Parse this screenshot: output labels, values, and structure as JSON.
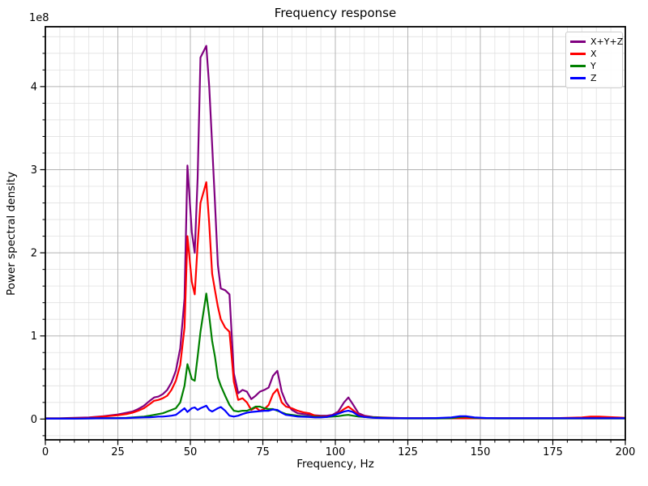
{
  "chart": {
    "title": "Frequency response",
    "xlabel": "Frequency, Hz",
    "ylabel": "Power spectral density",
    "offset_text": "1e8"
  },
  "chart_data": {
    "type": "line",
    "title": "Frequency response",
    "xlabel": "Frequency, Hz",
    "ylabel": "Power spectral density",
    "grid": "on",
    "legend_position": "upper right",
    "xlim": [
      0,
      200
    ],
    "ylim_1e8": [
      -0.25,
      4.72
    ],
    "x_ticks": [
      0,
      25,
      50,
      75,
      100,
      125,
      150,
      175,
      200
    ],
    "x_minor_step": 5,
    "y_ticks": [
      0,
      1,
      2,
      3,
      4
    ],
    "y_minor_step": 0.2,
    "y_offset_label": "1e8",
    "y_unit_multiplier": 100000000,
    "x": [
      0,
      5,
      10,
      15,
      20,
      25,
      28,
      30,
      32,
      34,
      36,
      37.5,
      39,
      40.5,
      42,
      43.5,
      45,
      46.5,
      48,
      49,
      50.5,
      51.5,
      52.5,
      53.5,
      55.5,
      56.5,
      57.5,
      58.5,
      59.5,
      60.5,
      62,
      63.5,
      65,
      66.5,
      68,
      69.5,
      71,
      72.5,
      74,
      75.5,
      77,
      78.5,
      80,
      81.5,
      83,
      85,
      87,
      89,
      91,
      93,
      95,
      97,
      99,
      101,
      103,
      104.5,
      106,
      108,
      110,
      113,
      116,
      120,
      125,
      130,
      135,
      140,
      143,
      145,
      148,
      152,
      156,
      160,
      165,
      170,
      175,
      180,
      185,
      188,
      191,
      194,
      197,
      200
    ],
    "series": [
      {
        "name": "X+Y+Z",
        "color": "#800080",
        "values": [
          0.01,
          0.01,
          0.015,
          0.02,
          0.035,
          0.055,
          0.075,
          0.09,
          0.12,
          0.16,
          0.22,
          0.26,
          0.27,
          0.3,
          0.35,
          0.44,
          0.58,
          0.85,
          1.45,
          3.05,
          2.25,
          2.0,
          2.9,
          4.35,
          4.49,
          4.0,
          3.3,
          2.6,
          1.85,
          1.57,
          1.55,
          1.5,
          0.55,
          0.31,
          0.35,
          0.33,
          0.24,
          0.28,
          0.33,
          0.35,
          0.38,
          0.52,
          0.58,
          0.33,
          0.2,
          0.11,
          0.07,
          0.06,
          0.05,
          0.045,
          0.04,
          0.04,
          0.05,
          0.09,
          0.2,
          0.26,
          0.18,
          0.07,
          0.04,
          0.025,
          0.02,
          0.015,
          0.01,
          0.01,
          0.01,
          0.015,
          0.02,
          0.02,
          0.015,
          0.01,
          0.01,
          0.01,
          0.01,
          0.01,
          0.01,
          0.01,
          0.01,
          0.015,
          0.02,
          0.02,
          0.015,
          0.01
        ]
      },
      {
        "name": "X",
        "color": "#ff0000",
        "values": [
          0.005,
          0.005,
          0.01,
          0.015,
          0.03,
          0.045,
          0.06,
          0.075,
          0.1,
          0.13,
          0.18,
          0.22,
          0.23,
          0.25,
          0.28,
          0.35,
          0.46,
          0.65,
          1.1,
          2.2,
          1.65,
          1.5,
          2.1,
          2.6,
          2.85,
          2.35,
          1.75,
          1.55,
          1.35,
          1.2,
          1.1,
          1.05,
          0.45,
          0.23,
          0.25,
          0.2,
          0.11,
          0.14,
          0.1,
          0.12,
          0.17,
          0.3,
          0.36,
          0.2,
          0.15,
          0.13,
          0.1,
          0.08,
          0.07,
          0.04,
          0.03,
          0.03,
          0.04,
          0.07,
          0.12,
          0.15,
          0.11,
          0.05,
          0.03,
          0.02,
          0.015,
          0.01,
          0.01,
          0.01,
          0.01,
          0.01,
          0.01,
          0.01,
          0.01,
          0.01,
          0.01,
          0.01,
          0.01,
          0.01,
          0.01,
          0.015,
          0.02,
          0.03,
          0.03,
          0.025,
          0.02,
          0.015
        ]
      },
      {
        "name": "Y",
        "color": "#008000",
        "values": [
          0.005,
          0.005,
          0.005,
          0.008,
          0.01,
          0.012,
          0.015,
          0.02,
          0.025,
          0.03,
          0.04,
          0.05,
          0.06,
          0.07,
          0.09,
          0.11,
          0.13,
          0.2,
          0.4,
          0.66,
          0.48,
          0.46,
          0.75,
          1.05,
          1.51,
          1.24,
          0.94,
          0.75,
          0.5,
          0.4,
          0.28,
          0.17,
          0.1,
          0.09,
          0.1,
          0.1,
          0.12,
          0.15,
          0.15,
          0.13,
          0.12,
          0.12,
          0.1,
          0.08,
          0.06,
          0.05,
          0.04,
          0.035,
          0.03,
          0.028,
          0.025,
          0.025,
          0.03,
          0.035,
          0.045,
          0.05,
          0.04,
          0.03,
          0.025,
          0.02,
          0.015,
          0.01,
          0.008,
          0.008,
          0.008,
          0.012,
          0.025,
          0.03,
          0.015,
          0.01,
          0.008,
          0.008,
          0.008,
          0.008,
          0.008,
          0.008,
          0.008,
          0.008,
          0.008,
          0.008,
          0.008,
          0.008
        ]
      },
      {
        "name": "Z",
        "color": "#0000ff",
        "values": [
          0.005,
          0.005,
          0.005,
          0.008,
          0.01,
          0.01,
          0.012,
          0.015,
          0.018,
          0.02,
          0.022,
          0.025,
          0.03,
          0.03,
          0.035,
          0.04,
          0.05,
          0.09,
          0.13,
          0.085,
          0.13,
          0.14,
          0.11,
          0.13,
          0.16,
          0.11,
          0.09,
          0.11,
          0.13,
          0.145,
          0.1,
          0.04,
          0.03,
          0.04,
          0.06,
          0.075,
          0.085,
          0.09,
          0.095,
          0.1,
          0.1,
          0.115,
          0.11,
          0.075,
          0.05,
          0.04,
          0.03,
          0.028,
          0.025,
          0.02,
          0.02,
          0.025,
          0.04,
          0.065,
          0.09,
          0.1,
          0.085,
          0.04,
          0.025,
          0.015,
          0.012,
          0.01,
          0.01,
          0.01,
          0.012,
          0.02,
          0.035,
          0.035,
          0.02,
          0.012,
          0.01,
          0.01,
          0.01,
          0.01,
          0.01,
          0.01,
          0.01,
          0.01,
          0.01,
          0.01,
          0.01,
          0.01
        ]
      }
    ],
    "style": {
      "background": "#ffffff",
      "spine_color": "#000000",
      "major_grid_color": "#b4b4b4",
      "minor_grid_color": "#e0e0e0",
      "line_width": 2.2
    }
  }
}
